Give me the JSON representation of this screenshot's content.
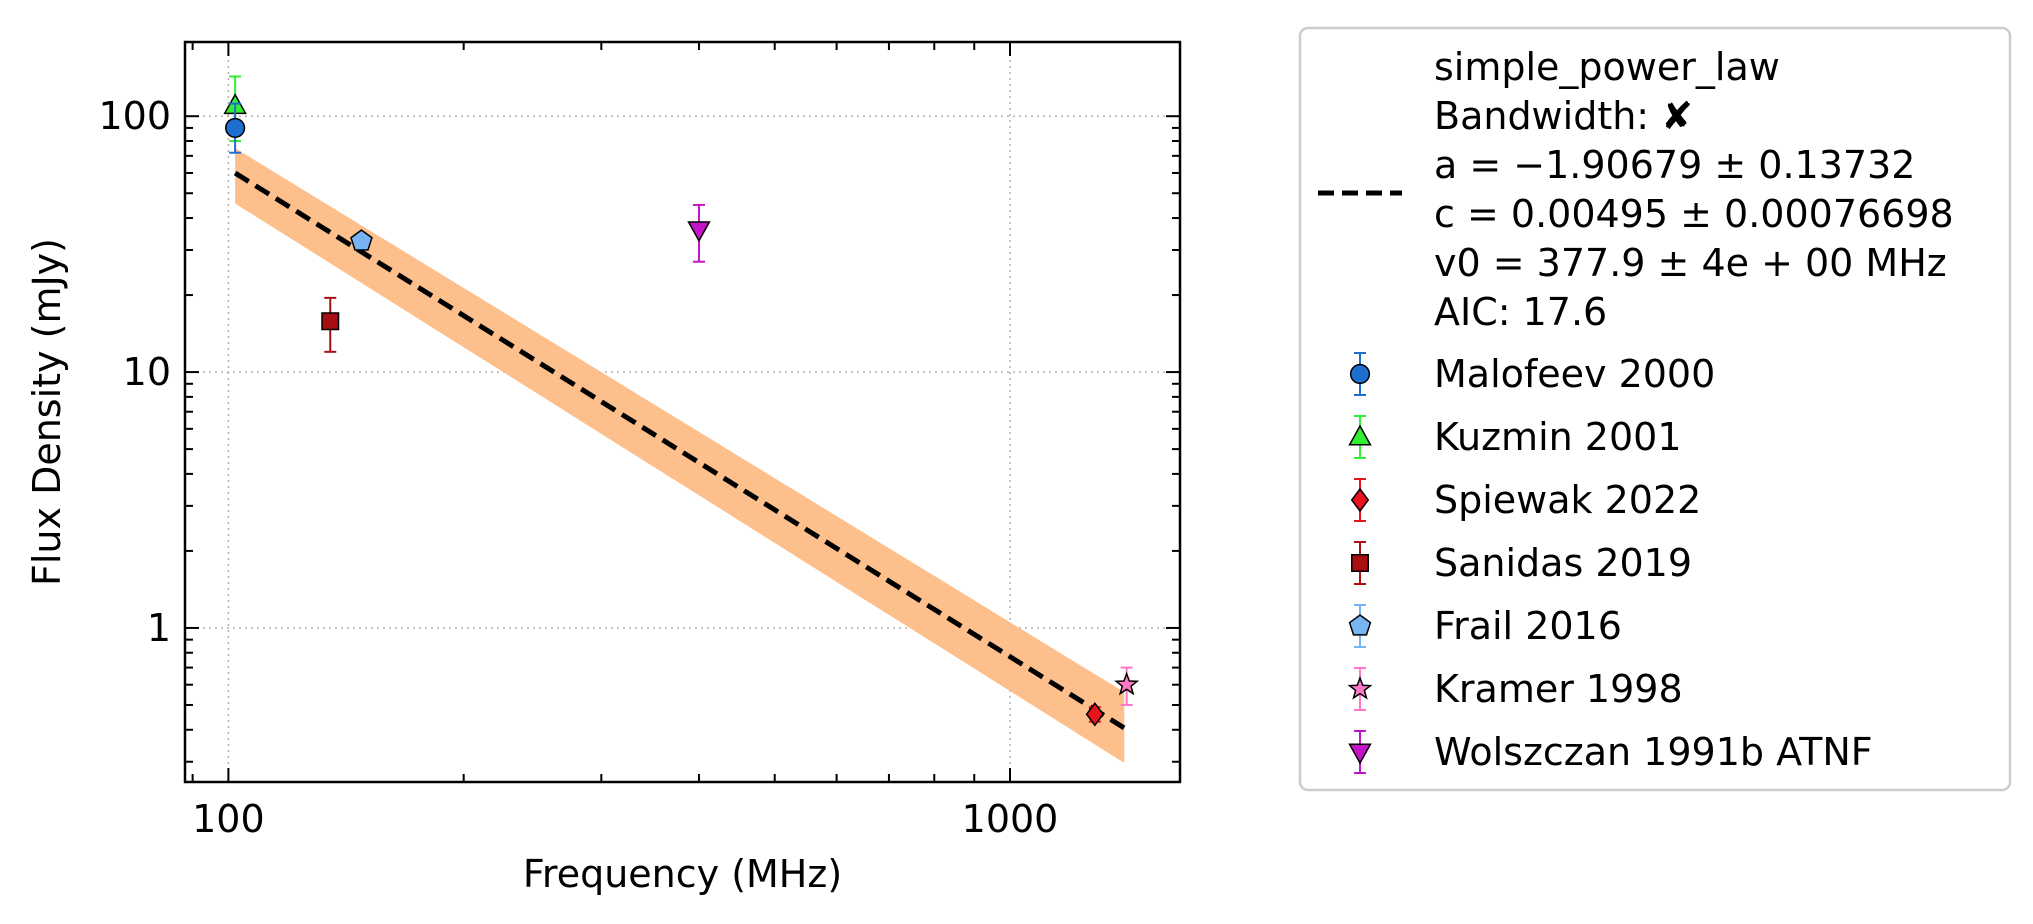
{
  "chart_data": {
    "type": "scatter",
    "x_scale": "log",
    "y_scale": "log",
    "xlabel": "Frequency (MHz)",
    "ylabel": "Flux Density (mJy)",
    "xlim": [
      88,
      1650
    ],
    "ylim": [
      0.25,
      195
    ],
    "x_ticks": [
      {
        "value": 100,
        "label": "100"
      },
      {
        "value": 1000,
        "label": "1000"
      }
    ],
    "y_ticks": [
      {
        "value": 1,
        "label": "1"
      },
      {
        "value": 10,
        "label": "10"
      },
      {
        "value": 100,
        "label": "100"
      }
    ],
    "grid": true,
    "legend_position": "outside right",
    "fit": {
      "name": "simple_power_law",
      "bandwidth_line": "Bandwidth: ✘",
      "param_lines": [
        "a = −1.90679 ± 0.13732",
        "c = 0.00495 ± 0.00076698",
        "v0 = 377.9 ± 4e + 00 MHz",
        "AIC: 17.6"
      ],
      "v0": 377.9,
      "a": -1.90679,
      "c": 0.00495,
      "x_range": [
        102,
        1400
      ],
      "line_color": "#000000",
      "band_color": "#fdbf8c",
      "band_lower_factor": [
        0.76,
        0.73
      ],
      "band_upper_factor": [
        1.25,
        1.38
      ]
    },
    "series": [
      {
        "name": "Malofeev 2000",
        "marker": "circle",
        "color": "#1f6fd1",
        "points": [
          {
            "x": 102,
            "y": 90,
            "ylo": 72,
            "yhi": 112
          }
        ]
      },
      {
        "name": "Kuzmin 2001",
        "marker": "triangle-up",
        "color": "#33ee33",
        "points": [
          {
            "x": 102,
            "y": 110,
            "ylo": 80,
            "yhi": 143
          }
        ]
      },
      {
        "name": "Spiewak 2022",
        "marker": "diamond",
        "color": "#e8141b",
        "points": [
          {
            "x": 1284,
            "y": 0.46,
            "ylo": 0.43,
            "yhi": 0.49
          }
        ]
      },
      {
        "name": "Sanidas 2019",
        "marker": "square",
        "color": "#a80f12",
        "points": [
          {
            "x": 135,
            "y": 15.8,
            "ylo": 12,
            "yhi": 19.5
          }
        ]
      },
      {
        "name": "Frail 2016",
        "marker": "pentagon",
        "color": "#78b4f2",
        "points": [
          {
            "x": 148,
            "y": 32.5,
            "ylo": 31.5,
            "yhi": 33.5
          }
        ]
      },
      {
        "name": "Kramer 1998",
        "marker": "star",
        "color": "#ff78c8",
        "points": [
          {
            "x": 1410,
            "y": 0.6,
            "ylo": 0.5,
            "yhi": 0.7
          }
        ]
      },
      {
        "name": "Wolszczan 1991b ATNF",
        "marker": "triangle-down",
        "color": "#c414c8",
        "points": [
          {
            "x": 400,
            "y": 36,
            "ylo": 27,
            "yhi": 45
          }
        ]
      }
    ]
  }
}
